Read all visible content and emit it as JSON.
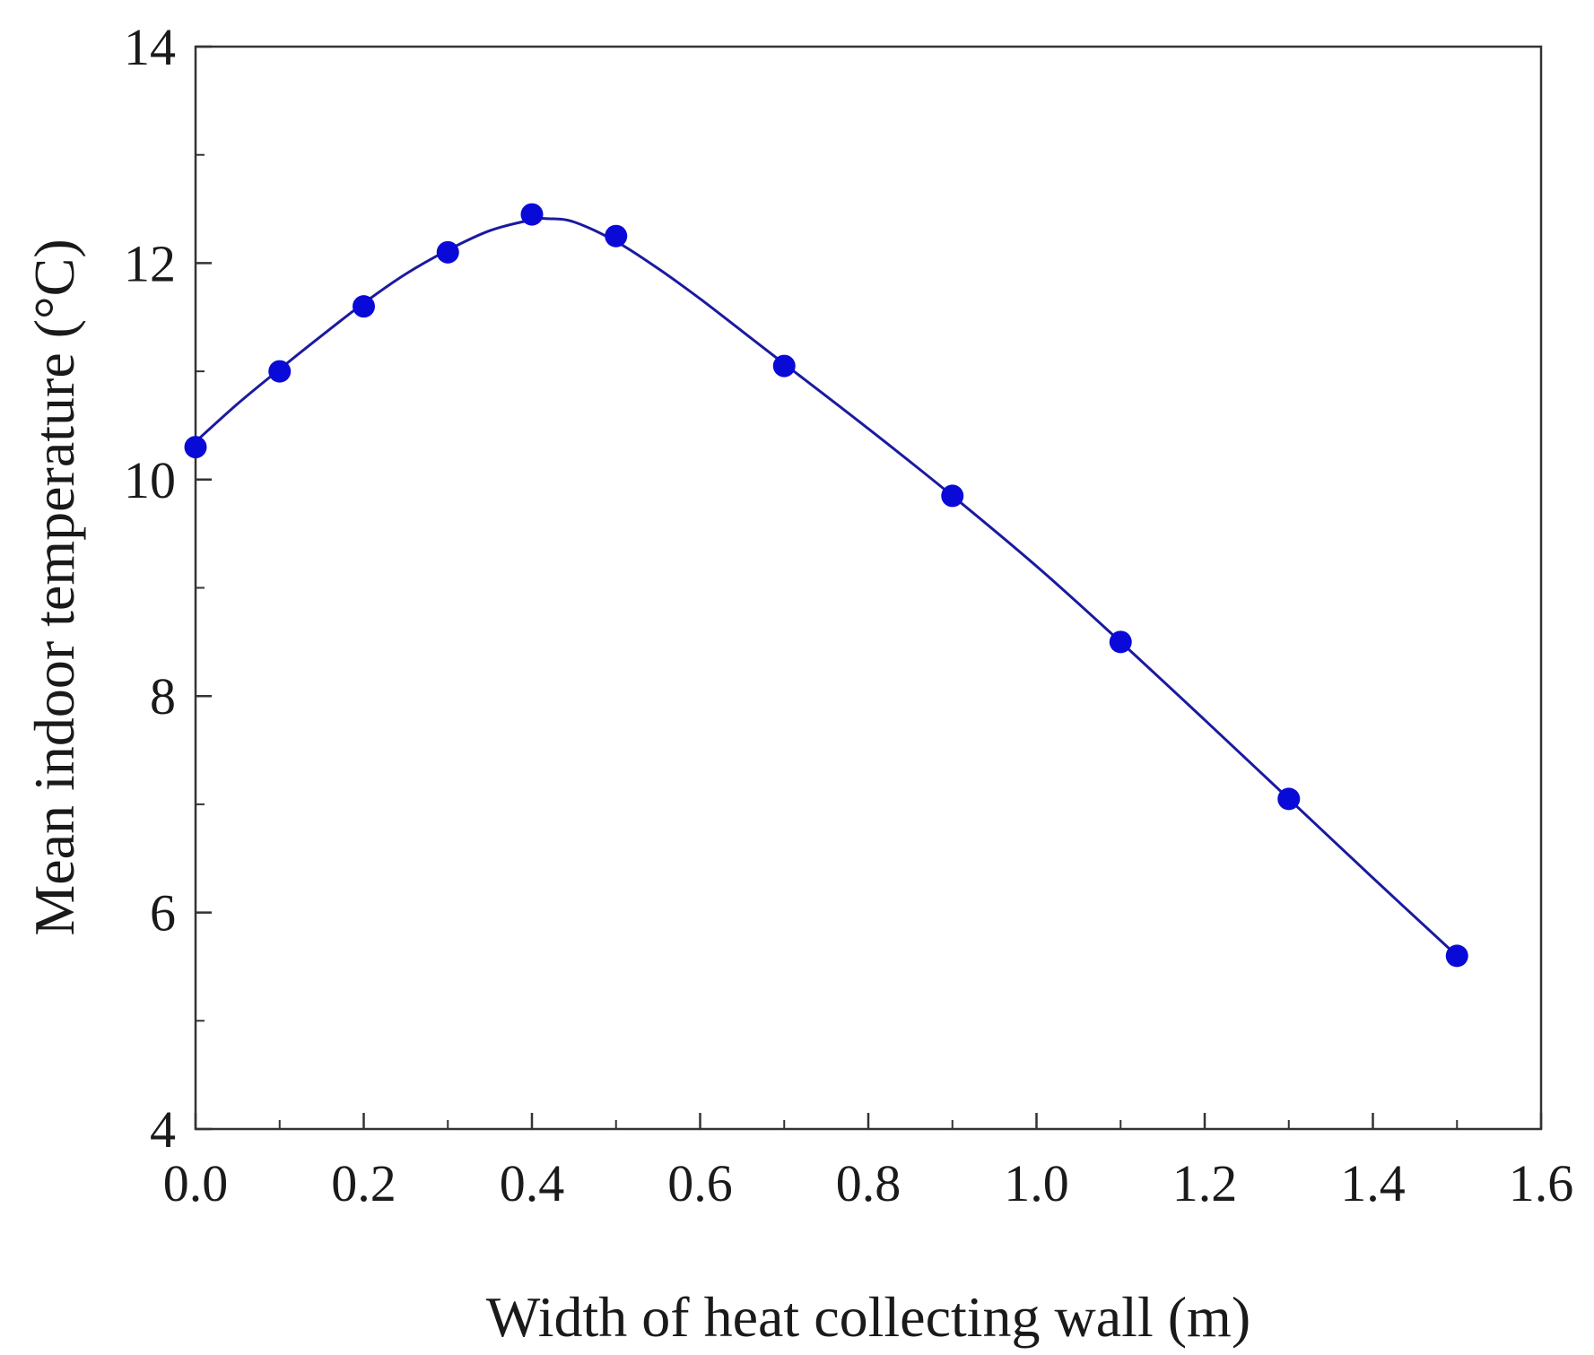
{
  "chart_data": {
    "type": "line",
    "title": "",
    "xlabel": "Width of heat collecting wall (m)",
    "ylabel": "Mean indoor temperature (°C)",
    "xlim": [
      0.0,
      1.6
    ],
    "ylim": [
      4,
      14
    ],
    "xticks": [
      0.0,
      0.2,
      0.4,
      0.6,
      0.8,
      1.0,
      1.2,
      1.4,
      1.6
    ],
    "xtick_labels": [
      "0.0",
      "0.2",
      "0.4",
      "0.6",
      "0.8",
      "1.0",
      "1.2",
      "1.4",
      "1.6"
    ],
    "xminor": [
      0.1,
      0.3,
      0.5,
      0.7,
      0.9,
      1.1,
      1.3,
      1.5
    ],
    "yticks": [
      4,
      6,
      8,
      10,
      12,
      14
    ],
    "ytick_labels": [
      "4",
      "6",
      "8",
      "10",
      "12",
      "14"
    ],
    "yminor": [
      5,
      7,
      9,
      11,
      13
    ],
    "grid": false,
    "series": [
      {
        "name": "Mean indoor temperature",
        "color": "#0a0ad8",
        "marker": "circle",
        "x": [
          0.0,
          0.1,
          0.2,
          0.3,
          0.4,
          0.5,
          0.7,
          0.9,
          1.1,
          1.3,
          1.5
        ],
        "y": [
          10.3,
          11.0,
          11.6,
          12.1,
          12.45,
          12.25,
          11.05,
          9.85,
          8.5,
          7.05,
          5.6
        ]
      }
    ],
    "fit_curve": {
      "color": "#1a1aa0",
      "x": [
        0.0,
        0.05,
        0.1,
        0.15,
        0.2,
        0.25,
        0.3,
        0.35,
        0.4,
        0.42,
        0.45,
        0.5,
        0.55,
        0.6,
        0.65,
        0.7,
        0.8,
        0.9,
        1.0,
        1.1,
        1.2,
        1.3,
        1.4,
        1.5
      ],
      "y": [
        10.35,
        10.7,
        11.02,
        11.33,
        11.63,
        11.9,
        12.12,
        12.3,
        12.4,
        12.41,
        12.38,
        12.2,
        11.95,
        11.67,
        11.37,
        11.07,
        10.47,
        9.85,
        9.2,
        8.5,
        7.78,
        7.05,
        6.32,
        5.6
      ]
    }
  }
}
